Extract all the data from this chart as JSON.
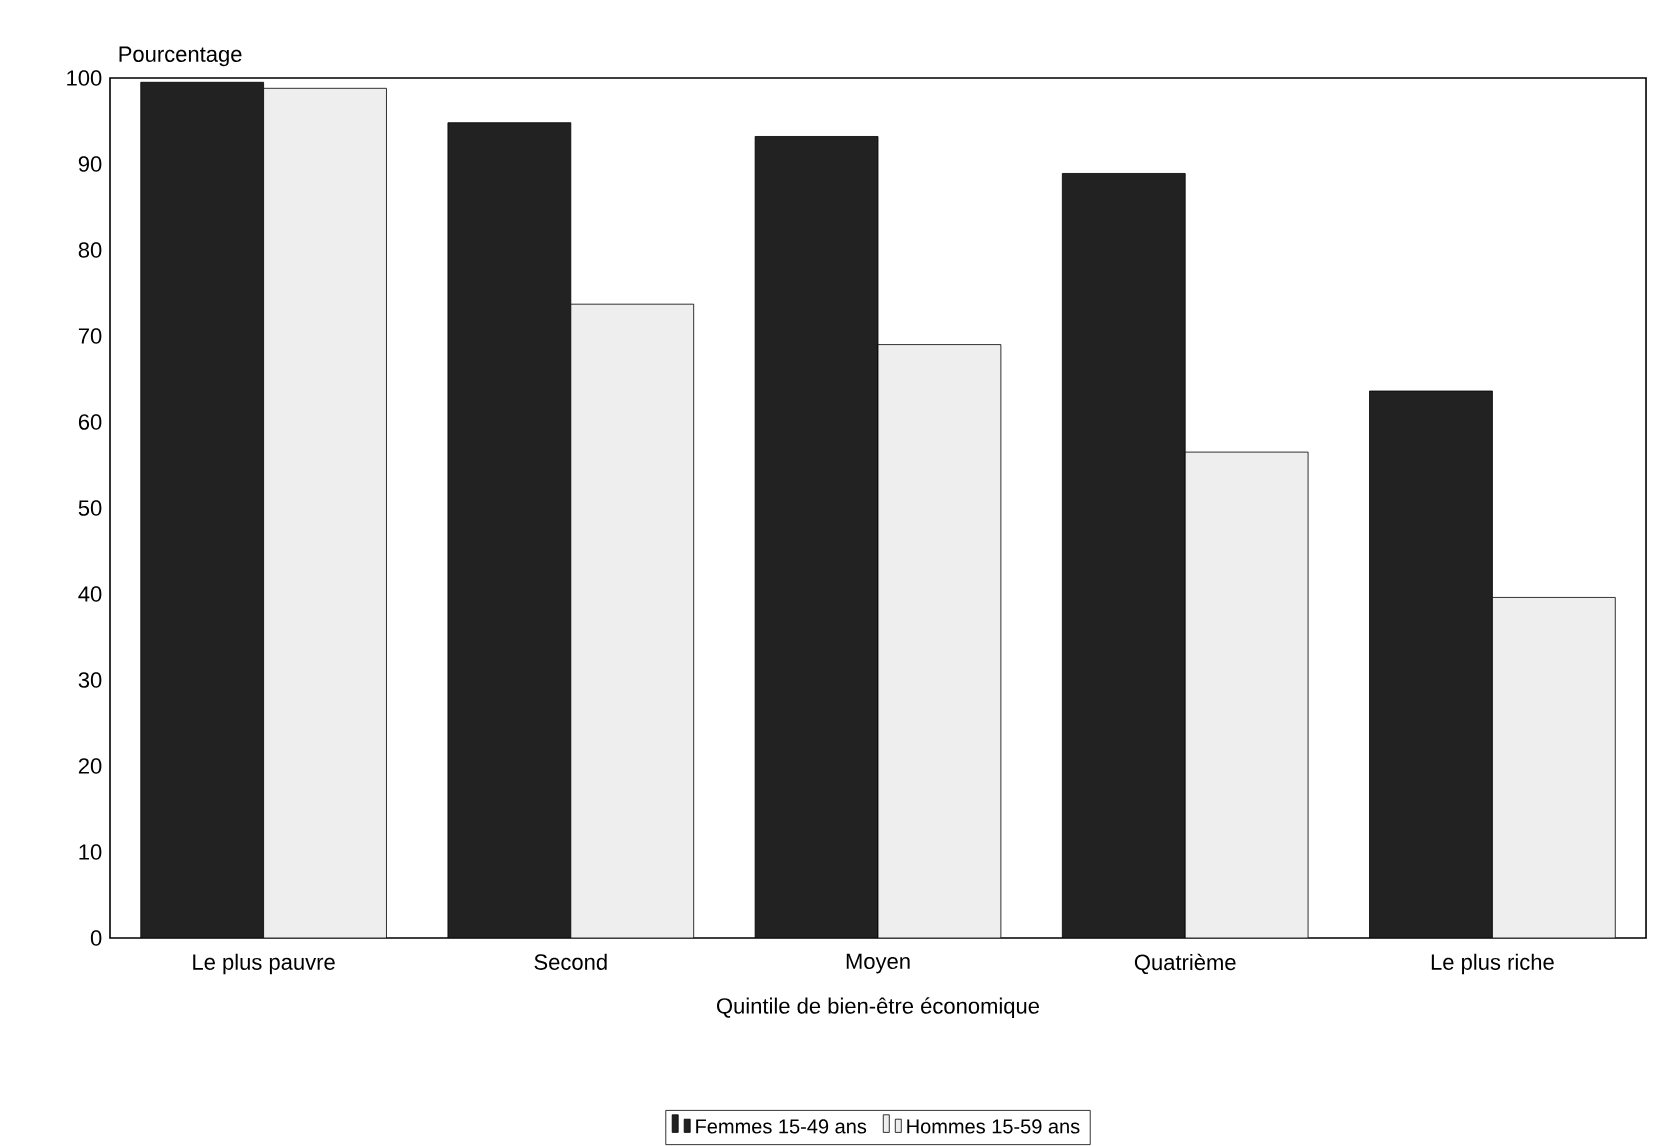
{
  "chart_data": {
    "type": "bar",
    "ylabel": "Pourcentage",
    "xlabel": "Quintile de bien-être économique",
    "categories": [
      "Le plus pauvre",
      "Second",
      "Moyen",
      "Quatrième",
      "Le plus riche"
    ],
    "series": [
      {
        "name": "Femmes 15-49 ans",
        "color": "#222222",
        "values": [
          99.5,
          94.8,
          93.2,
          88.9,
          63.6
        ]
      },
      {
        "name": "Hommes 15-59 ans",
        "color": "#eeeeee",
        "values": [
          98.8,
          73.7,
          69.0,
          56.5,
          39.6
        ]
      }
    ],
    "ylim": [
      0,
      100
    ],
    "yticks": [
      0,
      10,
      20,
      30,
      40,
      50,
      60,
      70,
      80,
      90,
      100
    ],
    "grid": false,
    "legend": "bottom"
  }
}
